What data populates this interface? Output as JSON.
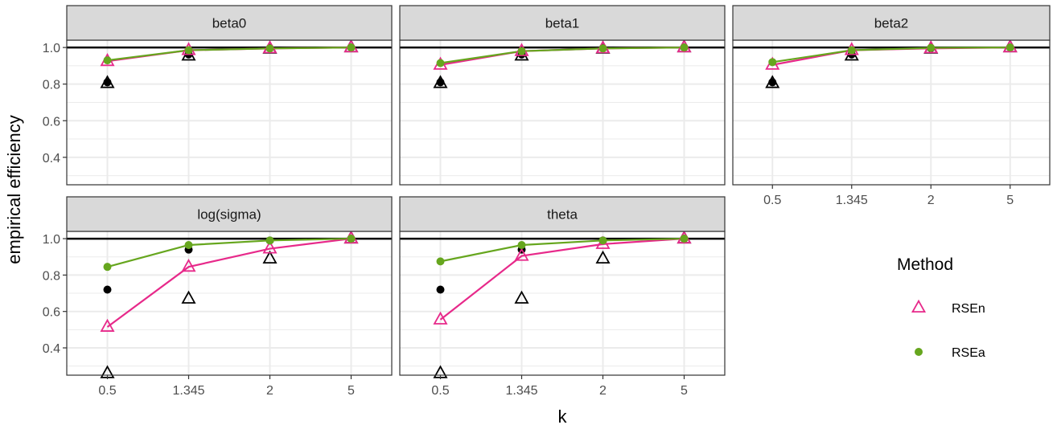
{
  "chart_data": {
    "type": "scatter",
    "xlabel": "k",
    "ylabel": "empirical efficiency",
    "categories": [
      "0.5",
      "1.345",
      "2",
      "5"
    ],
    "ylim": [
      0.25,
      1.04
    ],
    "yticks": [
      0.4,
      0.6,
      0.8,
      1.0
    ],
    "ytick_labels": [
      "0.4",
      "0.6",
      "0.8",
      "1.0"
    ],
    "reference_line": 1.0,
    "grid": true,
    "legend": {
      "title": "Method",
      "placement": "right",
      "entries": [
        {
          "name": "RSEn",
          "color": "#E7298A",
          "marker": "open-triangle"
        },
        {
          "name": "RSEa",
          "color": "#66A61E",
          "marker": "filled-circle"
        }
      ]
    },
    "panels": [
      {
        "title": "beta0",
        "series": [
          {
            "name": "RSEn",
            "values": [
              0.925,
              0.985,
              0.995,
              1.0
            ]
          },
          {
            "name": "RSEa",
            "values": [
              0.93,
              0.985,
              0.995,
              1.0
            ]
          }
        ],
        "reference": {
          "open_triangle": [
            0.805,
            0.955,
            0.993,
            1.0
          ],
          "filled_circle": [
            0.81,
            0.962,
            0.996,
            1.0
          ]
        }
      },
      {
        "title": "beta1",
        "series": [
          {
            "name": "RSEn",
            "values": [
              0.905,
              0.98,
              0.995,
              1.0
            ]
          },
          {
            "name": "RSEa",
            "values": [
              0.915,
              0.98,
              0.995,
              1.0
            ]
          }
        ],
        "reference": {
          "open_triangle": [
            0.805,
            0.955,
            0.993,
            1.0
          ],
          "filled_circle": [
            0.81,
            0.962,
            0.996,
            1.0
          ]
        }
      },
      {
        "title": "beta2",
        "series": [
          {
            "name": "RSEn",
            "values": [
              0.905,
              0.985,
              0.995,
              1.0
            ]
          },
          {
            "name": "RSEa",
            "values": [
              0.92,
              0.985,
              0.998,
              1.0
            ]
          }
        ],
        "reference": {
          "open_triangle": [
            0.805,
            0.955,
            0.993,
            1.0
          ],
          "filled_circle": [
            0.81,
            0.962,
            0.996,
            1.0
          ]
        }
      },
      {
        "title": "log(sigma)",
        "series": [
          {
            "name": "RSEn",
            "values": [
              0.515,
              0.845,
              0.945,
              1.0
            ]
          },
          {
            "name": "RSEa",
            "values": [
              0.845,
              0.965,
              0.99,
              1.0
            ]
          }
        ],
        "reference": {
          "open_triangle": [
            0.26,
            0.67,
            0.89,
            1.0
          ],
          "filled_circle": [
            0.72,
            0.94,
            0.99,
            1.0
          ]
        }
      },
      {
        "title": "theta",
        "series": [
          {
            "name": "RSEn",
            "values": [
              0.555,
              0.905,
              0.97,
              1.0
            ]
          },
          {
            "name": "RSEa",
            "values": [
              0.875,
              0.965,
              0.99,
              1.0
            ]
          }
        ],
        "reference": {
          "open_triangle": [
            0.26,
            0.67,
            0.89,
            1.0
          ],
          "filled_circle": [
            0.72,
            0.94,
            0.99,
            1.0
          ]
        }
      }
    ]
  }
}
